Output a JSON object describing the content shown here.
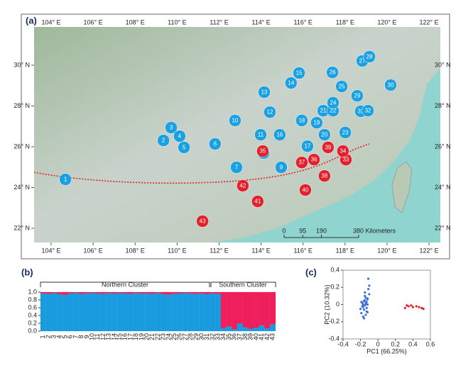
{
  "map": {
    "panel": "(a)",
    "lonticks": [
      {
        "value": 104,
        "label": "104° E"
      },
      {
        "value": 106,
        "label": "106° E"
      },
      {
        "value": 108,
        "label": "108° E"
      },
      {
        "value": 110,
        "label": "110° E"
      },
      {
        "value": 112,
        "label": "112° E"
      },
      {
        "value": 114,
        "label": "114° E"
      },
      {
        "value": 116,
        "label": "116° E"
      },
      {
        "value": 118,
        "label": "118° E"
      },
      {
        "value": 120,
        "label": "120° E"
      },
      {
        "value": 122,
        "label": "122° E"
      }
    ],
    "latticks": [
      {
        "value": 22,
        "label": "22° N"
      },
      {
        "value": 24,
        "label": "24° N"
      },
      {
        "value": 26,
        "label": "26° N"
      },
      {
        "value": 28,
        "label": "28° N"
      },
      {
        "value": 30,
        "label": "30° N"
      }
    ],
    "scale": [
      0,
      95,
      190,
      {
        "value": 380,
        "label": "380 Kilometers"
      }
    ],
    "populations": [
      {
        "label": "1",
        "lon": 104.68,
        "lat": 24.4,
        "color": "#1ba1e2"
      },
      {
        "label": "2",
        "lon": 109.35,
        "lat": 26.31,
        "color": "#1ba1e2"
      },
      {
        "label": "3",
        "lon": 109.72,
        "lat": 26.94,
        "color": "#1ba1e2"
      },
      {
        "label": "4",
        "lon": 110.12,
        "lat": 26.52,
        "color": "#1ba1e2"
      },
      {
        "label": "5",
        "lon": 110.33,
        "lat": 25.97,
        "color": "#1ba1e2"
      },
      {
        "label": "6",
        "lon": 111.81,
        "lat": 26.14,
        "color": "#1ba1e2"
      },
      {
        "label": "7",
        "lon": 112.83,
        "lat": 24.99,
        "color": "#1ba1e2"
      },
      {
        "label": "8",
        "lon": 114.12,
        "lat": 25.69,
        "color": "#1ba1e2"
      },
      {
        "label": "9",
        "lon": 114.96,
        "lat": 24.99,
        "color": "#1ba1e2"
      },
      {
        "label": "10",
        "lon": 112.76,
        "lat": 27.29,
        "color": "#1ba1e2"
      },
      {
        "label": "11",
        "lon": 113.98,
        "lat": 26.59,
        "color": "#1ba1e2"
      },
      {
        "label": "12",
        "lon": 114.42,
        "lat": 27.7,
        "color": "#1ba1e2"
      },
      {
        "label": "13",
        "lon": 114.15,
        "lat": 28.68,
        "color": "#1ba1e2"
      },
      {
        "label": "14",
        "lon": 115.43,
        "lat": 29.13,
        "color": "#1ba1e2"
      },
      {
        "label": "15",
        "lon": 115.81,
        "lat": 29.62,
        "color": "#1ba1e2"
      },
      {
        "label": "16",
        "lon": 114.89,
        "lat": 26.59,
        "color": "#1ba1e2"
      },
      {
        "label": "17",
        "lon": 116.21,
        "lat": 26.03,
        "color": "#1ba1e2"
      },
      {
        "label": "18",
        "lon": 115.94,
        "lat": 27.29,
        "color": "#1ba1e2"
      },
      {
        "label": "19",
        "lon": 116.65,
        "lat": 27.18,
        "color": "#1ba1e2"
      },
      {
        "label": "20",
        "lon": 117.02,
        "lat": 26.59,
        "color": "#1ba1e2"
      },
      {
        "label": "21",
        "lon": 116.96,
        "lat": 27.77,
        "color": "#1ba1e2"
      },
      {
        "label": "22",
        "lon": 117.43,
        "lat": 27.77,
        "color": "#1ba1e2"
      },
      {
        "label": "23",
        "lon": 118.01,
        "lat": 26.7,
        "color": "#1ba1e2"
      },
      {
        "label": "24",
        "lon": 117.43,
        "lat": 28.16,
        "color": "#1ba1e2"
      },
      {
        "label": "25",
        "lon": 117.84,
        "lat": 28.96,
        "color": "#1ba1e2"
      },
      {
        "label": "26",
        "lon": 117.4,
        "lat": 29.65,
        "color": "#1ba1e2"
      },
      {
        "label": "27",
        "lon": 118.82,
        "lat": 30.21,
        "color": "#1ba1e2"
      },
      {
        "label": "28",
        "lon": 119.16,
        "lat": 30.42,
        "color": "#1ba1e2"
      },
      {
        "label": "29",
        "lon": 118.58,
        "lat": 28.5,
        "color": "#1ba1e2"
      },
      {
        "label": "30",
        "lon": 120.17,
        "lat": 29.03,
        "color": "#1ba1e2"
      },
      {
        "label": "31",
        "lon": 118.75,
        "lat": 27.74,
        "color": "#1ba1e2"
      },
      {
        "label": "32",
        "lon": 119.09,
        "lat": 27.77,
        "color": "#1ba1e2"
      },
      {
        "label": "33",
        "lon": 118.04,
        "lat": 25.37,
        "color": "#e3202b"
      },
      {
        "label": "34",
        "lon": 117.9,
        "lat": 25.79,
        "color": "#e3202b"
      },
      {
        "label": "35",
        "lon": 114.08,
        "lat": 25.79,
        "color": "#e3202b"
      },
      {
        "label": "36",
        "lon": 116.52,
        "lat": 25.37,
        "color": "#e3202b"
      },
      {
        "label": "37",
        "lon": 115.94,
        "lat": 25.23,
        "color": "#e3202b"
      },
      {
        "label": "38",
        "lon": 117.02,
        "lat": 24.57,
        "color": "#e3202b"
      },
      {
        "label": "39",
        "lon": 117.19,
        "lat": 25.97,
        "color": "#e3202b"
      },
      {
        "label": "40",
        "lon": 116.11,
        "lat": 23.88,
        "color": "#e3202b"
      },
      {
        "label": "41",
        "lon": 113.84,
        "lat": 23.32,
        "color": "#e3202b"
      },
      {
        "label": "42",
        "lon": 113.13,
        "lat": 24.09,
        "color": "#e3202b"
      },
      {
        "label": "43",
        "lon": 111.21,
        "lat": 22.35,
        "color": "#e3202b"
      }
    ]
  },
  "chart_data": [
    {
      "type": "bar",
      "stacked": true,
      "panel": "(b)",
      "categories": [
        "1",
        "2",
        "3",
        "4",
        "5",
        "6",
        "7",
        "8",
        "9",
        "10",
        "11",
        "12",
        "13",
        "14",
        "15",
        "16",
        "17",
        "18",
        "19",
        "20",
        "21",
        "22",
        "23",
        "24",
        "25",
        "26",
        "27",
        "28",
        "29",
        "30",
        "31",
        "32",
        "33",
        "34",
        "35",
        "36",
        "37",
        "38",
        "39",
        "40",
        "41",
        "42",
        "43"
      ],
      "annotations": [
        "Northern Cluster",
        "Southern Cluster"
      ],
      "series": [
        {
          "color": "#1a9be0",
          "values": [
            0.97,
            0.96,
            0.98,
            0.95,
            0.93,
            0.97,
            0.98,
            0.96,
            0.97,
            0.98,
            0.97,
            0.96,
            0.98,
            0.97,
            0.98,
            0.97,
            0.96,
            0.98,
            0.97,
            0.97,
            0.96,
            0.98,
            0.95,
            0.94,
            0.96,
            0.97,
            0.98,
            0.97,
            0.96,
            0.97,
            0.95,
            0.97,
            0.96,
            0.08,
            0.12,
            0.05,
            0.2,
            0.1,
            0.06,
            0.09,
            0.15,
            0.07,
            0.18
          ]
        },
        {
          "color": "#ee1f5a",
          "values": [
            0.03,
            0.04,
            0.02,
            0.05,
            0.07,
            0.03,
            0.02,
            0.04,
            0.03,
            0.02,
            0.03,
            0.04,
            0.02,
            0.03,
            0.02,
            0.03,
            0.04,
            0.02,
            0.03,
            0.03,
            0.04,
            0.02,
            0.05,
            0.06,
            0.04,
            0.03,
            0.02,
            0.03,
            0.04,
            0.03,
            0.05,
            0.03,
            0.04,
            0.92,
            0.88,
            0.95,
            0.8,
            0.9,
            0.94,
            0.91,
            0.85,
            0.93,
            0.82
          ]
        }
      ],
      "ylim": [
        0,
        1
      ],
      "yticks": [
        {
          "value": 0,
          "label": "0.0"
        },
        0.2,
        0.4,
        0.6,
        0.8,
        {
          "value": 1,
          "label": "1.0"
        }
      ]
    },
    {
      "type": "scatter",
      "panel": "(c)",
      "xlabel": "PC1 (66.25%)",
      "ylabel": "PC2 (10.32%)",
      "series": [
        {
          "color": "#3a6fd8",
          "x": [
            -0.18,
            -0.15,
            -0.12,
            -0.17,
            -0.14,
            -0.1,
            -0.16,
            -0.13,
            -0.19,
            -0.11,
            -0.15,
            -0.17,
            -0.12,
            -0.14,
            -0.2,
            -0.16,
            -0.13,
            -0.18,
            -0.11,
            -0.15,
            -0.14,
            -0.12,
            -0.17,
            -0.1,
            -0.16,
            -0.13,
            -0.15,
            -0.19,
            -0.12,
            -0.14
          ],
          "y": [
            0.02,
            0.05,
            0,
            -0.03,
            0.08,
            0.12,
            -0.06,
            0.03,
            -0.1,
            0.18,
            -0.01,
            -0.14,
            0.07,
            0.01,
            -0.05,
            0.04,
            -0.08,
            -0.02,
            0.3,
            0.1,
            -0.12,
            0.06,
            0,
            0.22,
            -0.16,
            -0.04,
            0.14,
            0.03,
            -0.09,
            0.02
          ]
        },
        {
          "color": "#e3202b",
          "x": [
            0.31,
            0.35,
            0.38,
            0.4,
            0.44,
            0.47,
            0.5,
            0.52,
            0.33
          ],
          "y": [
            -0.04,
            -0.02,
            -0.01,
            -0.03,
            -0.02,
            -0.03,
            -0.04,
            -0.05,
            -0.01
          ]
        }
      ],
      "xlim": [
        -0.4,
        0.6
      ],
      "xticks": [
        -0.4,
        -0.2,
        0,
        0.2,
        0.4,
        0.6
      ],
      "ylim": [
        -0.4,
        0.4
      ],
      "yticks": [
        -0.4,
        -0.2,
        0,
        0.2,
        0.4
      ]
    }
  ]
}
